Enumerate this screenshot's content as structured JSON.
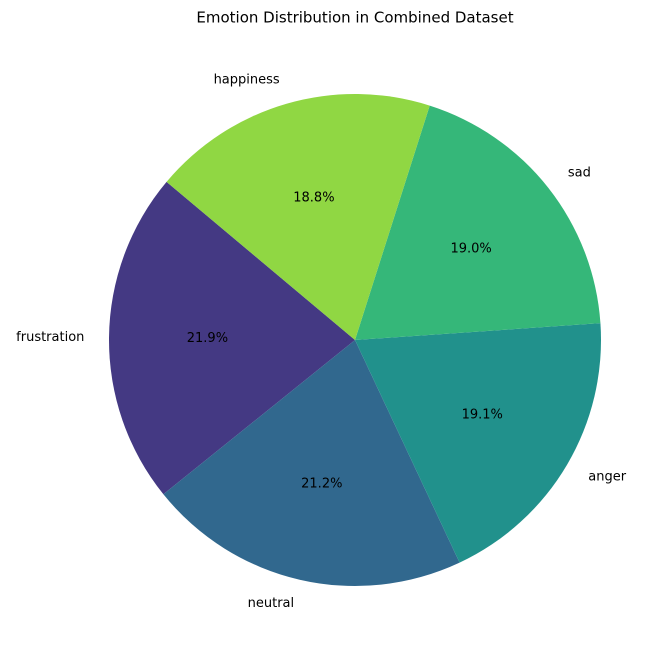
{
  "chart_data": {
    "type": "pie",
    "title": "Emotion Distribution in Combined Dataset",
    "categories": [
      "frustration",
      "neutral",
      "anger",
      "sad",
      "happiness"
    ],
    "values": [
      21.9,
      21.2,
      19.1,
      19.0,
      18.8
    ],
    "value_labels": [
      "21.9%",
      "21.2%",
      "19.1%",
      "19.0%",
      "18.8%"
    ],
    "colors": [
      "#443983",
      "#31688e",
      "#21918c",
      "#35b779",
      "#90d743"
    ]
  }
}
